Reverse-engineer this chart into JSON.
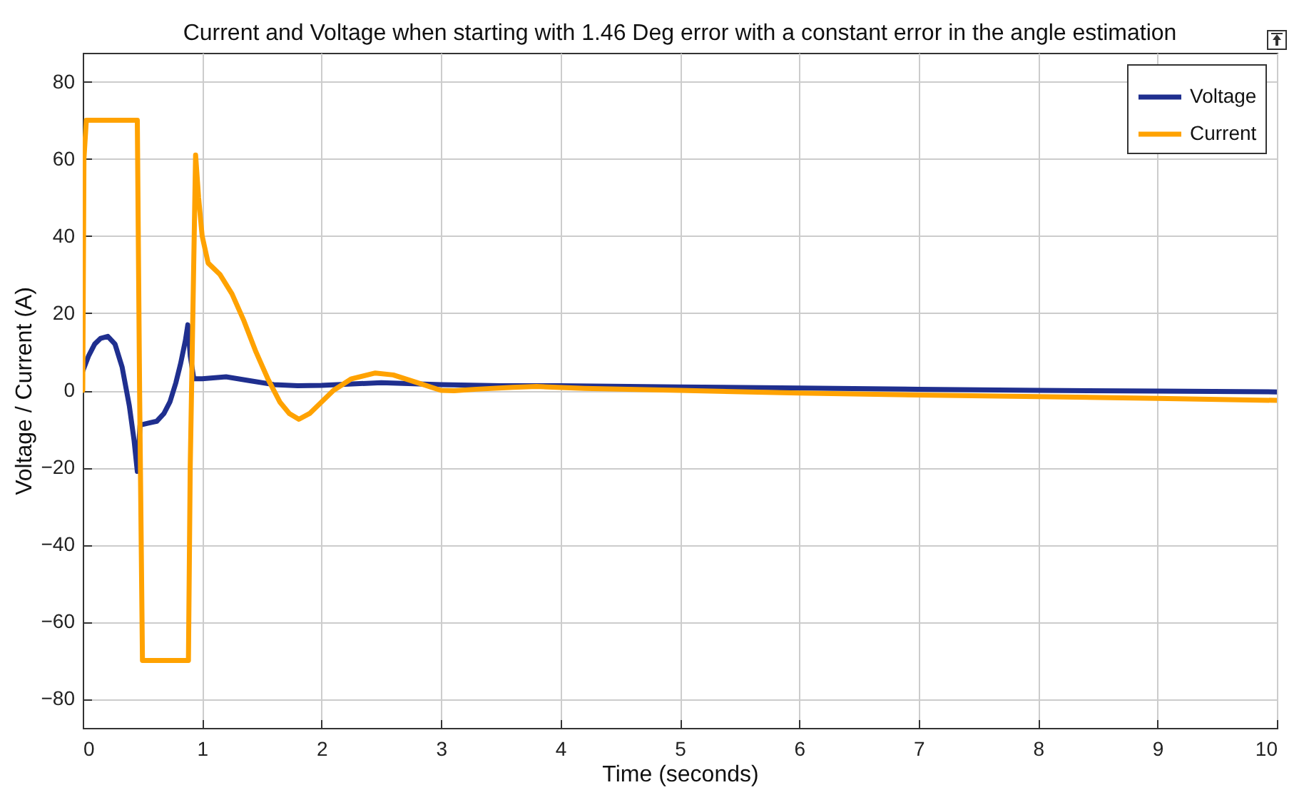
{
  "chart_data": {
    "type": "line",
    "title": "Current and Voltage when starting with 1.46 Deg error with a constant error in the angle estimation",
    "xlabel": "Time (seconds)",
    "ylabel": "Voltage / Current (A)",
    "xlim": [
      0,
      10
    ],
    "ylim": [
      -87.5,
      87.5
    ],
    "xticks": [
      0,
      1,
      2,
      3,
      4,
      5,
      6,
      7,
      8,
      9,
      10
    ],
    "yticks": [
      -80,
      -60,
      -40,
      -20,
      0,
      20,
      40,
      60,
      80
    ],
    "grid": true,
    "legend": "top right",
    "line_style": "solid",
    "marker": "none",
    "series": [
      {
        "name": "Voltage",
        "color": "#1f2f8f",
        "x": [
          0,
          0.05,
          0.1,
          0.15,
          0.21,
          0.27,
          0.33,
          0.39,
          0.43,
          0.457,
          0.48,
          0.55,
          0.62,
          0.68,
          0.73,
          0.78,
          0.82,
          0.86,
          0.88,
          0.9,
          0.93,
          1.0,
          1.2,
          1.4,
          1.6,
          1.8,
          2.0,
          2.5,
          3.0,
          3.5,
          4.0,
          5.0,
          6.0,
          7.0,
          8.0,
          9.0,
          10.0
        ],
        "values": [
          5,
          9,
          12,
          13.5,
          14,
          12,
          6,
          -4,
          -13,
          -21,
          -9,
          -8.5,
          -8,
          -6,
          -3,
          2,
          7,
          13,
          17,
          9,
          3,
          3,
          3.5,
          2.5,
          1.5,
          1.2,
          1.3,
          2,
          1.5,
          1.2,
          1.2,
          0.9,
          0.6,
          0.3,
          0,
          -0.2,
          -0.4
        ]
      },
      {
        "name": "Current",
        "color": "#ffa200",
        "x": [
          0,
          0.01,
          0.03,
          0.457,
          0.476,
          0.5,
          0.885,
          0.9,
          0.945,
          0.97,
          1.0,
          1.05,
          1.15,
          1.25,
          1.35,
          1.45,
          1.55,
          1.65,
          1.73,
          1.81,
          1.9,
          2.0,
          2.1,
          2.25,
          2.45,
          2.6,
          2.8,
          3.0,
          3.11,
          3.3,
          3.6,
          3.8,
          4.2,
          5.0,
          6.0,
          7.0,
          8.0,
          9.0,
          10.0
        ],
        "values": [
          0,
          60,
          70,
          70,
          0,
          -70,
          -70,
          -20,
          61,
          50,
          40,
          33,
          30,
          25,
          18,
          10,
          3,
          -3,
          -6,
          -7.5,
          -6,
          -3,
          0,
          3,
          4.5,
          4,
          2,
          0,
          -0.1,
          0.3,
          0.8,
          1,
          0.5,
          0,
          -0.7,
          -1.2,
          -1.6,
          -2.1,
          -2.6
        ]
      }
    ]
  }
}
